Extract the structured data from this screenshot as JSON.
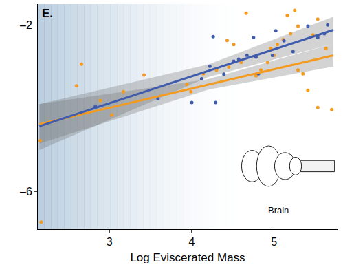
{
  "chart_data": {
    "type": "scatter",
    "panel_label": "E.",
    "x_label": "Log Eviscerated Mass",
    "annotation": {
      "text": "Brain",
      "x": 5.05,
      "y": -6.45
    },
    "xlim": [
      2.13,
      5.77
    ],
    "xticks": [
      3,
      4,
      5
    ],
    "ylim": [
      -6.9,
      -1.5
    ],
    "yticks": [
      {
        "value": -2,
        "label": "–2"
      },
      {
        "value": -6,
        "label": "–6"
      }
    ],
    "grid": false,
    "series": [
      {
        "type": "scatter",
        "marker": "circle",
        "color": "#f39a1f",
        "x": [
          2.16,
          2.17,
          2.66,
          2.6,
          2.89,
          3.03,
          3.17,
          3.42,
          3.94,
          3.99,
          4.14,
          4.3,
          4.45,
          4.43,
          4.51,
          4.6,
          4.66,
          4.78,
          4.84,
          4.92,
          4.96,
          5.0,
          5.04,
          5.11,
          5.16,
          5.2,
          5.25,
          5.29,
          5.29,
          5.35,
          5.41,
          5.47,
          5.53,
          5.53,
          5.7,
          5.63
        ],
        "values": [
          -4.78,
          -6.73,
          -2.94,
          -3.46,
          -3.81,
          -4.16,
          -3.6,
          -3.2,
          -3.43,
          -3.6,
          -3.17,
          -3.08,
          -3.01,
          -2.37,
          -2.47,
          -2.9,
          -1.72,
          -3.22,
          -3.08,
          -2.9,
          -2.56,
          -2.73,
          -2.47,
          -2.35,
          -1.77,
          -2.21,
          -1.65,
          -2.03,
          -3.08,
          -3.17,
          -3.57,
          -2.24,
          -1.86,
          -3.98,
          -4.03,
          -2.56
        ]
      },
      {
        "type": "scatter",
        "marker": "circle",
        "color": "#3f5bab",
        "x": [
          2.83,
          3.59,
          4.0,
          4.12,
          4.22,
          4.29,
          4.39,
          4.51,
          4.57,
          4.67,
          4.78,
          4.81,
          5.02,
          4.98,
          5.12,
          5.23,
          5.41,
          5.53,
          5.61,
          5.65,
          4.26,
          4.75
        ],
        "values": [
          -3.95,
          -3.77,
          -3.86,
          -3.29,
          -2.99,
          -3.86,
          -3.18,
          -2.87,
          -2.82,
          -2.73,
          -2.77,
          -3.17,
          -2.14,
          -2.73,
          -2.38,
          -2.64,
          -2.03,
          -2.3,
          -2.21,
          -2.0,
          -2.28,
          -2.3
        ]
      },
      {
        "type": "line",
        "line_style": "solid",
        "color": "#f39a1f",
        "x": [
          2.15,
          4.2,
          5.72
        ],
        "values": [
          -4.38,
          -3.43,
          -2.73
        ],
        "ci_lower": [
          -4.85,
          -3.55,
          -3.0
        ],
        "ci_upper": [
          -3.9,
          -3.3,
          -2.45
        ]
      },
      {
        "type": "line",
        "line_style": "solid",
        "color": "#3f5bab",
        "x": [
          2.15,
          4.2,
          5.72
        ],
        "values": [
          -4.43,
          -3.1,
          -2.12
        ],
        "ci_lower": [
          -5.0,
          -3.25,
          -2.45
        ],
        "ci_upper": [
          -3.9,
          -2.95,
          -1.8
        ]
      }
    ]
  }
}
